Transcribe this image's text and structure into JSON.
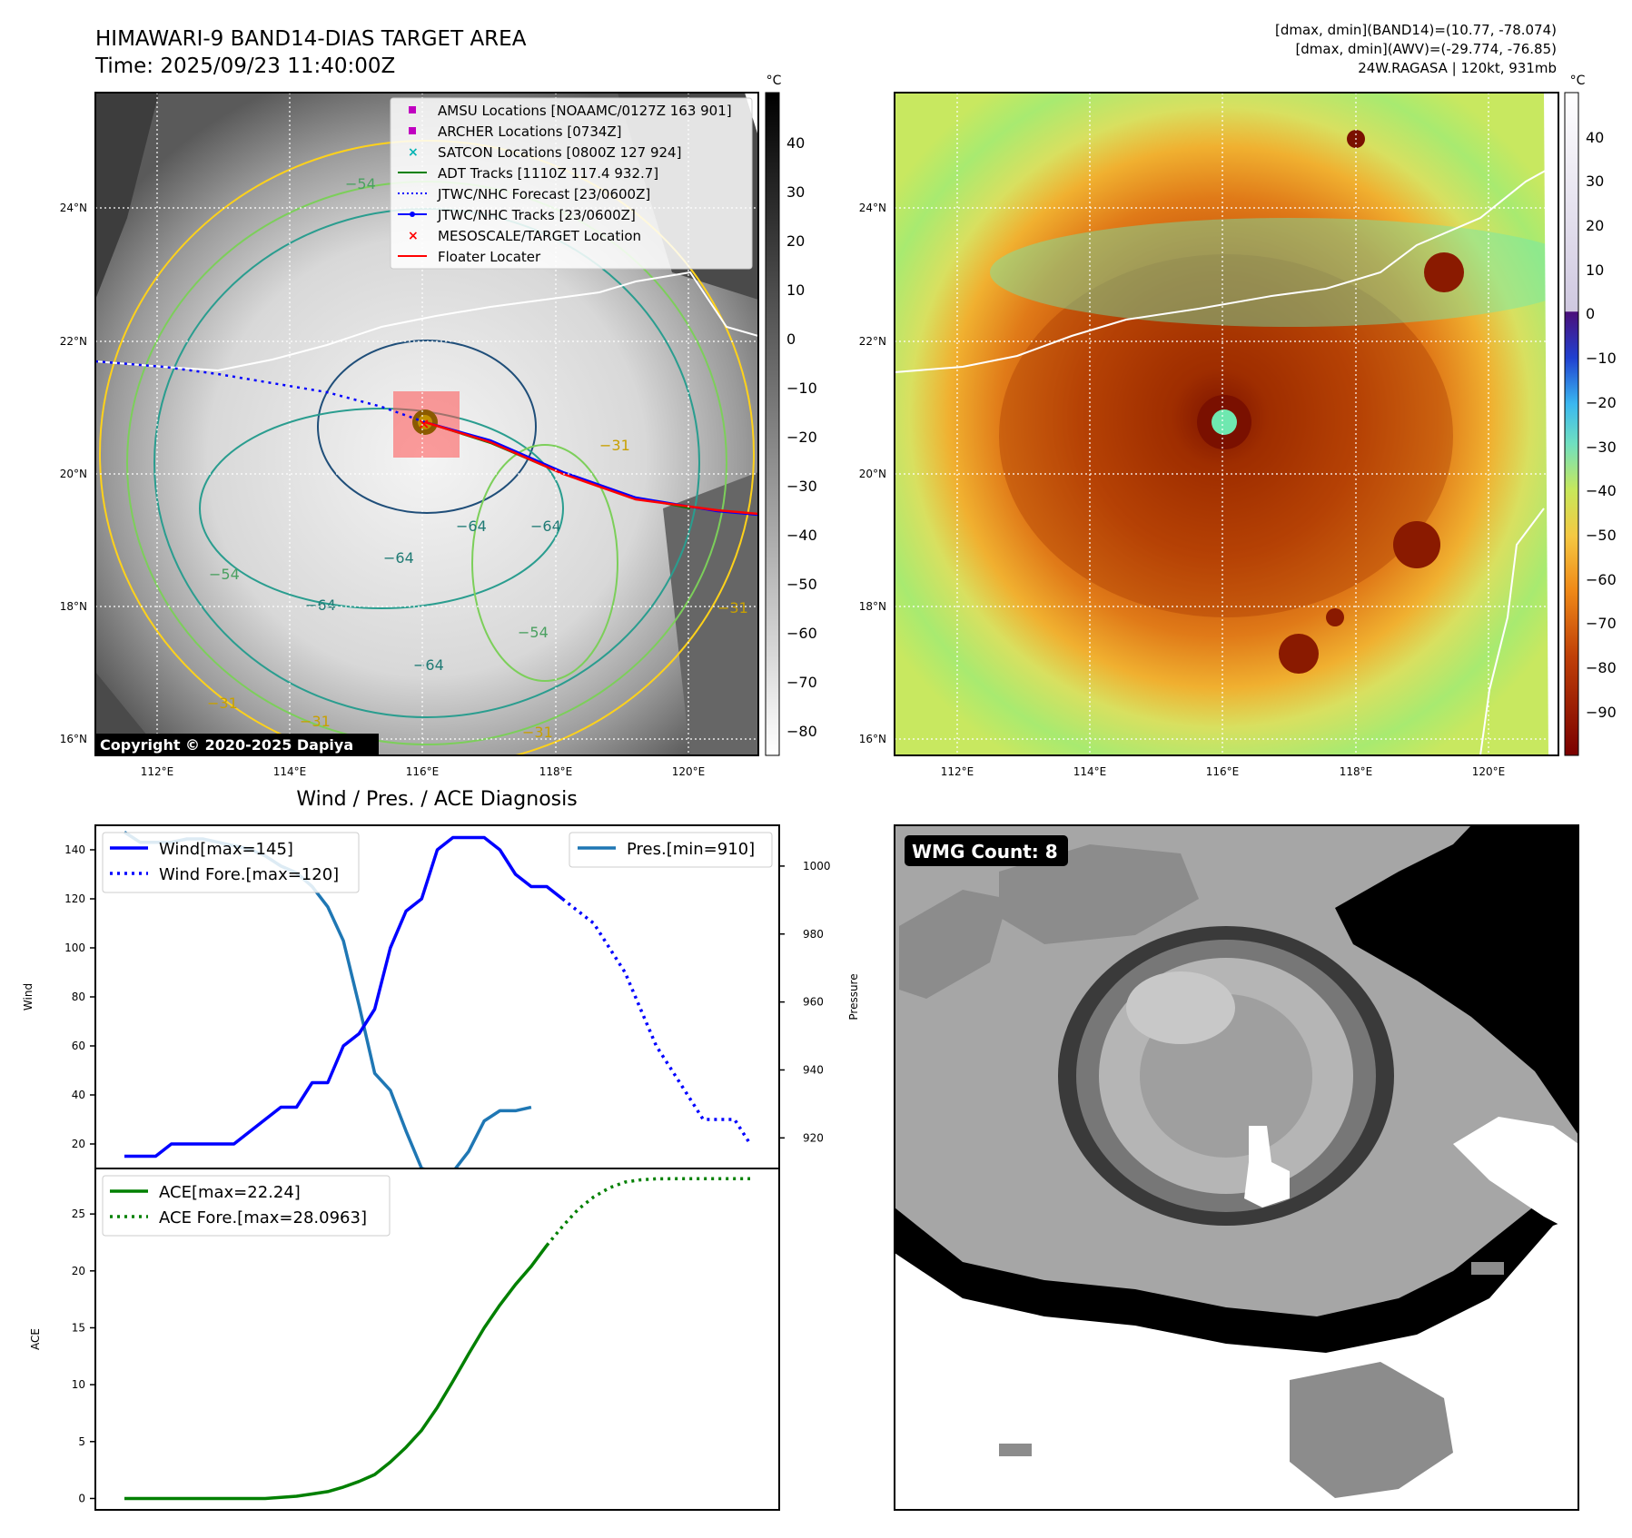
{
  "sat_panel": {
    "title_line1": "HIMAWARI-9 BAND14-DIAS TARGET AREA",
    "title_line2": "Time: 2025/09/23 11:40:00Z",
    "copyright": "Copyright © 2020-2025 Dapiya",
    "colorbar_unit": "°C",
    "colorbar_ticks": [
      "40",
      "30",
      "20",
      "10",
      "0",
      "−10",
      "−20",
      "−30",
      "−40",
      "−50",
      "−60",
      "−70",
      "−80"
    ],
    "lat_labels": [
      "24°N",
      "22°N",
      "20°N",
      "18°N",
      "16°N"
    ],
    "lon_labels": [
      "112°E",
      "114°E",
      "116°E",
      "118°E",
      "120°E"
    ],
    "contour_labels": [
      "−64",
      "−64",
      "−64",
      "−64",
      "−64",
      "−54",
      "−54",
      "−54",
      "−31",
      "−31",
      "−31",
      "−31",
      "−31"
    ],
    "legend": [
      {
        "label": "AMSU Locations [NOAAMC/0127Z 163 901]",
        "marker": "square",
        "color": "#c000c0"
      },
      {
        "label": "ARCHER Locations [0734Z]",
        "marker": "square",
        "color": "#c000c0"
      },
      {
        "label": "SATCON Locations [0800Z 127 924]",
        "marker": "x",
        "color": "#00b4b4"
      },
      {
        "label": "ADT Tracks [1110Z 117.4 932.7]",
        "marker": "line",
        "color": "#008000"
      },
      {
        "label": "JTWC/NHC Forecast [23/0600Z]",
        "marker": "dotted",
        "color": "#0000ff"
      },
      {
        "label": "JTWC/NHC Tracks [23/0600Z]",
        "marker": "line-dot",
        "color": "#0000ff"
      },
      {
        "label": "MESOSCALE/TARGET Location",
        "marker": "x",
        "color": "#ff0000"
      },
      {
        "label": "Floater Locater",
        "marker": "line",
        "color": "#ff0000"
      }
    ]
  },
  "awv_panel": {
    "info_line1": "[dmax, dmin](BAND14)=(10.77, -78.074)",
    "info_line2": "[dmax, dmin](AWV)=(-29.774, -76.85)",
    "info_line3": "24W.RAGASA | 120kt, 931mb",
    "colorbar_unit": "°C",
    "colorbar_ticks": [
      "40",
      "30",
      "20",
      "10",
      "0",
      "−10",
      "−20",
      "−30",
      "−40",
      "−50",
      "−60",
      "−70",
      "−80",
      "−90"
    ],
    "lat_labels": [
      "24°N",
      "22°N",
      "20°N",
      "18°N",
      "16°N"
    ],
    "lon_labels": [
      "112°E",
      "114°E",
      "116°E",
      "118°E",
      "120°E"
    ]
  },
  "diag_panel": {
    "title": "Wind / Pres. / ACE Diagnosis",
    "wind_ylabel": "Wind",
    "pres_ylabel": "Pressure",
    "ace_ylabel": "ACE",
    "legend_wind": "Wind[max=145]",
    "legend_wind_fore": "Wind Fore.[max=120]",
    "legend_pres": "Pres.[min=910]",
    "legend_ace": "ACE[max=22.24]",
    "legend_ace_fore": "ACE Fore.[max=28.0963]"
  },
  "wmg_panel": {
    "badge": "WMG Count: 8"
  },
  "chart_data": [
    {
      "type": "line",
      "subplot": "wind_pressure",
      "x": [
        0,
        1,
        2,
        3,
        4,
        5,
        6,
        7,
        8,
        9,
        10,
        11,
        12,
        13,
        14,
        15,
        16,
        17,
        18,
        19,
        20,
        21,
        22,
        23,
        24,
        25,
        26,
        27,
        28,
        29,
        30,
        31,
        32,
        33,
        34,
        35,
        36,
        37,
        38,
        39,
        40
      ],
      "series": [
        {
          "name": "Wind[max=145]",
          "axis": "left",
          "color": "#0000ff",
          "style": "solid",
          "values": [
            15,
            15,
            15,
            20,
            20,
            20,
            20,
            20,
            25,
            30,
            35,
            35,
            45,
            45,
            60,
            65,
            75,
            100,
            115,
            120,
            140,
            145,
            145,
            145,
            140,
            130,
            125,
            125,
            120,
            null,
            null,
            null,
            null,
            null,
            null,
            null,
            null,
            null,
            null,
            null,
            null
          ]
        },
        {
          "name": "Wind Fore.[max=120]",
          "axis": "left",
          "color": "#0000ff",
          "style": "dotted",
          "values": [
            null,
            null,
            null,
            null,
            null,
            null,
            null,
            null,
            null,
            null,
            null,
            null,
            null,
            null,
            null,
            null,
            null,
            null,
            null,
            null,
            null,
            null,
            null,
            null,
            null,
            null,
            null,
            null,
            120,
            115,
            110,
            100,
            90,
            75,
            60,
            50,
            40,
            30,
            30,
            30,
            20
          ]
        },
        {
          "name": "Pres.[min=910]",
          "axis": "right",
          "color": "#1f77b4",
          "style": "solid",
          "values": [
            1010,
            1007,
            1007,
            1007,
            1008,
            1008,
            1007,
            1006,
            1005,
            1003,
            1000,
            998,
            994,
            988,
            978,
            959,
            939,
            934,
            922,
            911,
            910,
            910,
            916,
            925,
            928,
            928,
            929,
            null,
            null,
            null,
            null,
            null,
            null,
            null,
            null,
            null,
            null,
            null,
            null,
            null,
            null
          ]
        }
      ],
      "ylim_left": [
        10,
        150
      ],
      "ylim_right": [
        911,
        1012
      ],
      "yticks_left": [
        20,
        40,
        60,
        80,
        100,
        120,
        140
      ],
      "yticks_right": [
        920,
        940,
        960,
        980,
        1000
      ]
    },
    {
      "type": "line",
      "subplot": "ace",
      "x": [
        0,
        1,
        2,
        3,
        4,
        5,
        6,
        7,
        8,
        9,
        10,
        11,
        12,
        13,
        14,
        15,
        16,
        17,
        18,
        19,
        20,
        21,
        22,
        23,
        24,
        25,
        26,
        27,
        28,
        29,
        30,
        31,
        32,
        33,
        34,
        35,
        36,
        37,
        38,
        39,
        40
      ],
      "series": [
        {
          "name": "ACE[max=22.24]",
          "color": "#008000",
          "style": "solid",
          "values": [
            0,
            0,
            0,
            0,
            0,
            0,
            0,
            0,
            0,
            0,
            0.1,
            0.2,
            0.4,
            0.6,
            1.0,
            1.5,
            2.1,
            3.2,
            4.5,
            6.0,
            8.0,
            10.3,
            12.7,
            15.0,
            17.0,
            18.8,
            20.4,
            22.24,
            null,
            null,
            null,
            null,
            null,
            null,
            null,
            null,
            null,
            null,
            null,
            null,
            null
          ]
        },
        {
          "name": "ACE Fore.[max=28.0963]",
          "color": "#008000",
          "style": "dotted",
          "values": [
            null,
            null,
            null,
            null,
            null,
            null,
            null,
            null,
            null,
            null,
            null,
            null,
            null,
            null,
            null,
            null,
            null,
            null,
            null,
            null,
            null,
            null,
            null,
            null,
            null,
            null,
            null,
            22.24,
            23.9,
            25.4,
            26.5,
            27.3,
            27.8,
            28.0,
            28.09,
            28.0963,
            28.0963,
            28.0963,
            28.0963,
            28.0963,
            28.0963
          ]
        }
      ],
      "ylim": [
        -1,
        29
      ],
      "yticks": [
        0,
        5,
        10,
        15,
        20,
        25
      ]
    }
  ]
}
